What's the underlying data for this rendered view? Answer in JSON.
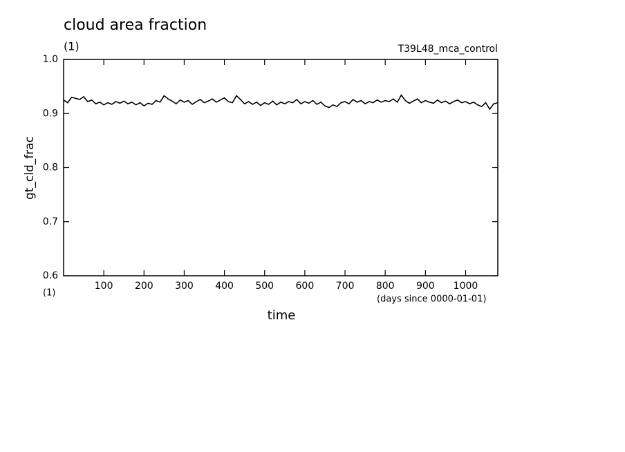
{
  "chart_data": {
    "type": "line",
    "title": "cloud area fraction",
    "subtitle": "(1)",
    "annotation": "T39L48_mca_control",
    "y_label": "gt_cld_frac",
    "y_unit": "(1)",
    "x_label": "time",
    "x_unit": "(days since 0000-01-01)",
    "color": "#000000",
    "x": [
      0,
      10,
      20,
      30,
      40,
      50,
      60,
      70,
      80,
      90,
      100,
      110,
      120,
      130,
      140,
      150,
      160,
      170,
      180,
      190,
      200,
      210,
      220,
      230,
      240,
      250,
      260,
      270,
      280,
      290,
      300,
      310,
      320,
      330,
      340,
      350,
      360,
      370,
      380,
      390,
      400,
      410,
      420,
      430,
      440,
      450,
      460,
      470,
      480,
      490,
      500,
      510,
      520,
      530,
      540,
      550,
      560,
      570,
      580,
      590,
      600,
      610,
      620,
      630,
      640,
      650,
      660,
      670,
      680,
      690,
      700,
      710,
      720,
      730,
      740,
      750,
      760,
      770,
      780,
      790,
      800,
      810,
      820,
      830,
      840,
      850,
      860,
      870,
      880,
      890,
      900,
      910,
      920,
      930,
      940,
      950,
      960,
      970,
      980,
      990,
      1000,
      1010,
      1020,
      1030,
      1040,
      1050,
      1060,
      1070,
      1080
    ],
    "values": [
      0.925,
      0.92,
      0.93,
      0.928,
      0.926,
      0.931,
      0.922,
      0.925,
      0.918,
      0.921,
      0.916,
      0.92,
      0.917,
      0.922,
      0.919,
      0.923,
      0.918,
      0.921,
      0.916,
      0.92,
      0.914,
      0.919,
      0.917,
      0.924,
      0.921,
      0.933,
      0.927,
      0.923,
      0.918,
      0.925,
      0.921,
      0.924,
      0.917,
      0.922,
      0.926,
      0.92,
      0.923,
      0.927,
      0.921,
      0.925,
      0.929,
      0.922,
      0.92,
      0.933,
      0.926,
      0.918,
      0.922,
      0.917,
      0.921,
      0.915,
      0.92,
      0.917,
      0.923,
      0.916,
      0.921,
      0.918,
      0.922,
      0.92,
      0.926,
      0.918,
      0.922,
      0.919,
      0.924,
      0.917,
      0.921,
      0.914,
      0.911,
      0.916,
      0.913,
      0.92,
      0.922,
      0.918,
      0.926,
      0.921,
      0.924,
      0.918,
      0.922,
      0.92,
      0.925,
      0.921,
      0.924,
      0.922,
      0.927,
      0.921,
      0.934,
      0.924,
      0.919,
      0.923,
      0.927,
      0.92,
      0.924,
      0.921,
      0.919,
      0.925,
      0.92,
      0.923,
      0.918,
      0.922,
      0.925,
      0.92,
      0.922,
      0.918,
      0.921,
      0.916,
      0.913,
      0.92,
      0.908,
      0.918,
      0.92
    ],
    "xlim": [
      0,
      1080
    ],
    "xticks": [
      100,
      200,
      300,
      400,
      500,
      600,
      700,
      800,
      900,
      1000
    ],
    "ylim": [
      0.6,
      1.0
    ],
    "yticks": [
      0.6,
      0.7,
      0.8,
      0.9,
      {
        "value": 1.0,
        "label": "1.0"
      }
    ]
  }
}
